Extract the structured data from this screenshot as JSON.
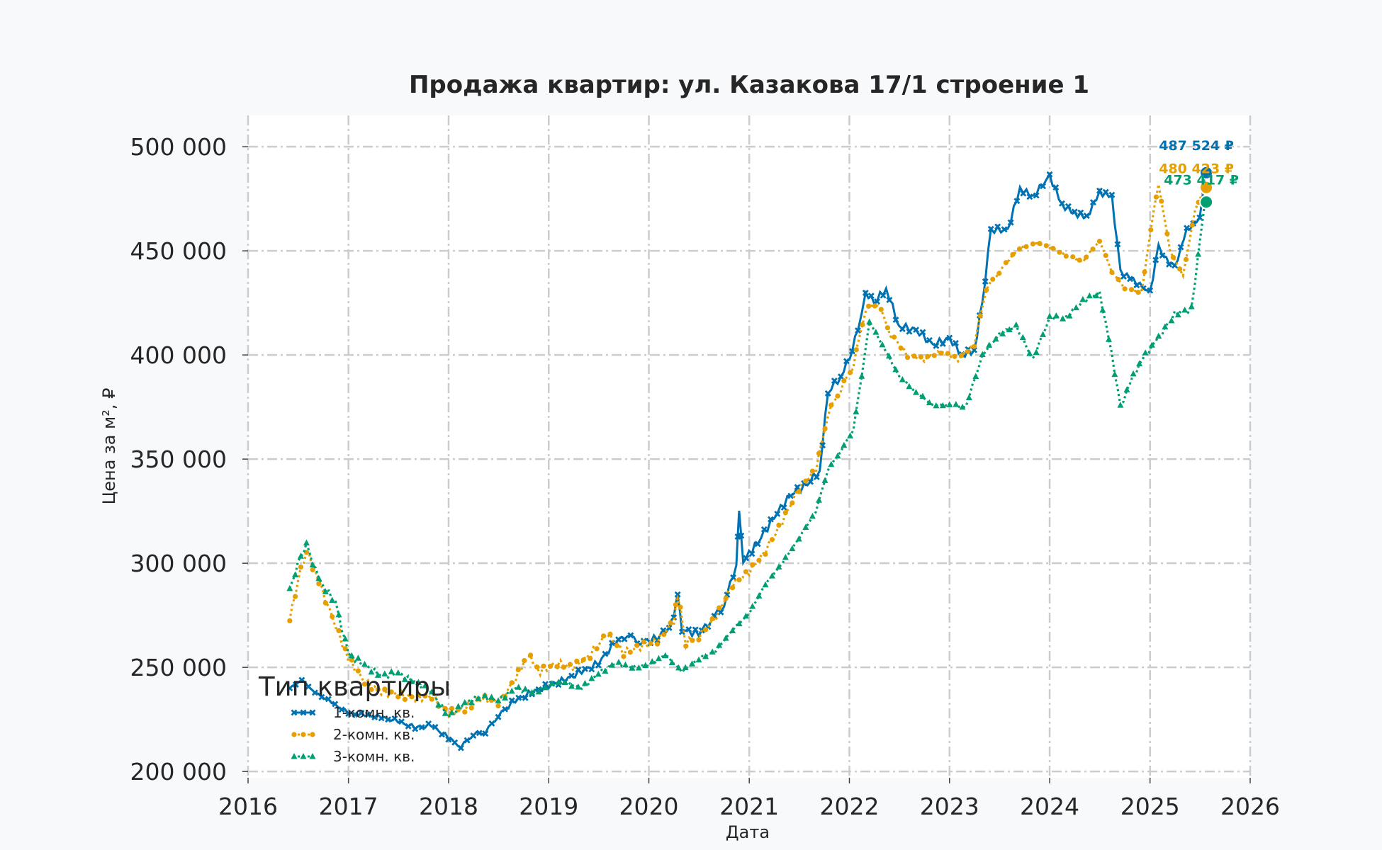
{
  "chart_data": {
    "type": "line",
    "title": "Продажа квартир: ул. Казакова 17/1 строение 1",
    "xlabel": "Дата",
    "ylabel": "Цена за м², ₽",
    "xlim": [
      "2016-01-01",
      "2026-01-01"
    ],
    "ylim": [
      197000,
      515000
    ],
    "x_ticks": [
      "2016",
      "2017",
      "2018",
      "2019",
      "2020",
      "2021",
      "2022",
      "2023",
      "2024",
      "2025",
      "2026"
    ],
    "y_ticks": [
      {
        "value": 200000,
        "label": "200 000"
      },
      {
        "value": 250000,
        "label": "250 000"
      },
      {
        "value": 300000,
        "label": "300 000"
      },
      {
        "value": 350000,
        "label": "350 000"
      },
      {
        "value": 400000,
        "label": "400 000"
      },
      {
        "value": 450000,
        "label": "450 000"
      },
      {
        "value": 500000,
        "label": "500 000"
      }
    ],
    "grid": true,
    "legend": {
      "title": "Тип квартиры",
      "placement": "lower-left"
    },
    "series": [
      {
        "name": "1-комн. кв.",
        "color": "#0072b2",
        "marker": "x",
        "end_label": "487 524 ₽",
        "end_value": 487524,
        "points": [
          [
            "2016-06-01",
            240000
          ],
          [
            "2016-07-15",
            244000
          ],
          [
            "2016-09-01",
            238000
          ],
          [
            "2016-11-01",
            233000
          ],
          [
            "2017-01-01",
            228000
          ],
          [
            "2017-03-01",
            227000
          ],
          [
            "2017-05-01",
            226000
          ],
          [
            "2017-07-01",
            224000
          ],
          [
            "2017-09-01",
            221000
          ],
          [
            "2017-11-01",
            222000
          ],
          [
            "2018-01-01",
            216000
          ],
          [
            "2018-02-15",
            212000
          ],
          [
            "2018-04-01",
            218000
          ],
          [
            "2018-05-15",
            219000
          ],
          [
            "2018-07-01",
            227000
          ],
          [
            "2018-09-01",
            234000
          ],
          [
            "2018-11-01",
            238000
          ],
          [
            "2019-01-01",
            241000
          ],
          [
            "2019-03-01",
            244000
          ],
          [
            "2019-05-01",
            248000
          ],
          [
            "2019-07-01",
            252000
          ],
          [
            "2019-09-01",
            262000
          ],
          [
            "2019-10-15",
            266000
          ],
          [
            "2019-12-01",
            262000
          ],
          [
            "2020-02-01",
            264000
          ],
          [
            "2020-03-15",
            270000
          ],
          [
            "2020-04-01",
            275000
          ],
          [
            "2020-04-15",
            286000
          ],
          [
            "2020-05-01",
            268000
          ],
          [
            "2020-07-01",
            266000
          ],
          [
            "2020-08-15",
            273000
          ],
          [
            "2020-10-01",
            280000
          ],
          [
            "2020-11-15",
            300000
          ],
          [
            "2020-11-25",
            326000
          ],
          [
            "2020-12-10",
            301000
          ],
          [
            "2021-02-01",
            310000
          ],
          [
            "2021-04-01",
            322000
          ],
          [
            "2021-06-01",
            333000
          ],
          [
            "2021-08-01",
            338000
          ],
          [
            "2021-09-15",
            345000
          ],
          [
            "2021-10-15",
            382000
          ],
          [
            "2021-12-01",
            390000
          ],
          [
            "2022-01-01",
            398000
          ],
          [
            "2022-02-01",
            412000
          ],
          [
            "2022-03-01",
            430000
          ],
          [
            "2022-04-01",
            425000
          ],
          [
            "2022-05-15",
            432000
          ],
          [
            "2022-07-01",
            414000
          ],
          [
            "2022-09-01",
            412000
          ],
          [
            "2022-11-01",
            405000
          ],
          [
            "2023-01-01",
            408000
          ],
          [
            "2023-02-15",
            400000
          ],
          [
            "2023-04-01",
            402000
          ],
          [
            "2023-05-01",
            425000
          ],
          [
            "2023-06-01",
            460000
          ],
          [
            "2023-08-01",
            460000
          ],
          [
            "2023-09-15",
            480000
          ],
          [
            "2023-11-01",
            476000
          ],
          [
            "2024-01-01",
            486000
          ],
          [
            "2024-02-15",
            472000
          ],
          [
            "2024-04-01",
            468000
          ],
          [
            "2024-05-15",
            466000
          ],
          [
            "2024-07-01",
            478000
          ],
          [
            "2024-08-15",
            476000
          ],
          [
            "2024-09-15",
            440000
          ],
          [
            "2024-11-01",
            436000
          ],
          [
            "2025-01-01",
            430000
          ],
          [
            "2025-02-01",
            452000
          ],
          [
            "2025-03-01",
            446000
          ],
          [
            "2025-04-01",
            442000
          ],
          [
            "2025-05-15",
            460000
          ],
          [
            "2025-07-01",
            465000
          ],
          [
            "2025-07-20",
            487524
          ]
        ]
      },
      {
        "name": "2-комн. кв.",
        "color": "#e69f00",
        "marker": "o",
        "end_label": "480 423 ₽",
        "end_value": 480423,
        "points": [
          [
            "2016-06-01",
            273000
          ],
          [
            "2016-07-01",
            292000
          ],
          [
            "2016-08-01",
            306000
          ],
          [
            "2016-09-15",
            291000
          ],
          [
            "2016-11-15",
            270000
          ],
          [
            "2017-01-01",
            254000
          ],
          [
            "2017-03-01",
            243000
          ],
          [
            "2017-05-01",
            238000
          ],
          [
            "2017-07-01",
            237000
          ],
          [
            "2017-09-01",
            235000
          ],
          [
            "2017-11-01",
            236000
          ],
          [
            "2018-01-01",
            228000
          ],
          [
            "2018-03-01",
            230000
          ],
          [
            "2018-05-01",
            235000
          ],
          [
            "2018-07-01",
            233000
          ],
          [
            "2018-09-01",
            244000
          ],
          [
            "2018-10-15",
            256000
          ],
          [
            "2018-12-01",
            248000
          ],
          [
            "2019-02-01",
            252000
          ],
          [
            "2019-04-01",
            250000
          ],
          [
            "2019-06-01",
            256000
          ],
          [
            "2019-08-01",
            266000
          ],
          [
            "2019-10-01",
            257000
          ],
          [
            "2019-12-01",
            260000
          ],
          [
            "2020-02-01",
            263000
          ],
          [
            "2020-04-01",
            272000
          ],
          [
            "2020-04-15",
            285000
          ],
          [
            "2020-05-15",
            262000
          ],
          [
            "2020-07-01",
            265000
          ],
          [
            "2020-09-01",
            274000
          ],
          [
            "2020-11-01",
            290000
          ],
          [
            "2021-01-01",
            296000
          ],
          [
            "2021-03-01",
            306000
          ],
          [
            "2021-05-01",
            320000
          ],
          [
            "2021-07-01",
            336000
          ],
          [
            "2021-09-01",
            345000
          ],
          [
            "2021-10-15",
            372000
          ],
          [
            "2021-12-01",
            384000
          ],
          [
            "2022-01-15",
            395000
          ],
          [
            "2022-03-01",
            422000
          ],
          [
            "2022-04-15",
            425000
          ],
          [
            "2022-06-01",
            410000
          ],
          [
            "2022-08-01",
            400000
          ],
          [
            "2022-10-01",
            398000
          ],
          [
            "2022-12-01",
            402000
          ],
          [
            "2023-02-01",
            398000
          ],
          [
            "2023-04-01",
            405000
          ],
          [
            "2023-05-15",
            432000
          ],
          [
            "2023-07-01",
            440000
          ],
          [
            "2023-09-01",
            450000
          ],
          [
            "2023-11-01",
            454000
          ],
          [
            "2024-01-01",
            452000
          ],
          [
            "2024-03-01",
            448000
          ],
          [
            "2024-05-01",
            445000
          ],
          [
            "2024-07-01",
            455000
          ],
          [
            "2024-08-15",
            440000
          ],
          [
            "2024-10-01",
            432000
          ],
          [
            "2024-12-01",
            430000
          ],
          [
            "2025-01-15",
            470000
          ],
          [
            "2025-02-01",
            482000
          ],
          [
            "2025-03-15",
            450000
          ],
          [
            "2025-05-01",
            438000
          ],
          [
            "2025-06-15",
            470000
          ],
          [
            "2025-07-20",
            480423
          ]
        ]
      },
      {
        "name": "3-комн. кв.",
        "color": "#009e73",
        "marker": "^",
        "end_label": "473 417 ₽",
        "end_value": 473417,
        "points": [
          [
            "2016-06-01",
            287000
          ],
          [
            "2016-07-01",
            300000
          ],
          [
            "2016-08-01",
            309000
          ],
          [
            "2016-09-15",
            292000
          ],
          [
            "2016-11-15",
            281000
          ],
          [
            "2017-01-01",
            256000
          ],
          [
            "2017-03-01",
            251000
          ],
          [
            "2017-05-01",
            246000
          ],
          [
            "2017-07-01",
            247000
          ],
          [
            "2017-09-01",
            243000
          ],
          [
            "2017-11-01",
            238000
          ],
          [
            "2018-01-01",
            226000
          ],
          [
            "2018-03-01",
            233000
          ],
          [
            "2018-05-01",
            236000
          ],
          [
            "2018-07-01",
            234000
          ],
          [
            "2018-09-01",
            240000
          ],
          [
            "2018-11-01",
            238000
          ],
          [
            "2019-01-01",
            241000
          ],
          [
            "2019-03-01",
            243000
          ],
          [
            "2019-05-01",
            240000
          ],
          [
            "2019-07-01",
            247000
          ],
          [
            "2019-09-01",
            252000
          ],
          [
            "2019-11-01",
            250000
          ],
          [
            "2020-01-01",
            251000
          ],
          [
            "2020-03-01",
            256000
          ],
          [
            "2020-05-01",
            248000
          ],
          [
            "2020-07-01",
            254000
          ],
          [
            "2020-09-01",
            258000
          ],
          [
            "2020-11-01",
            268000
          ],
          [
            "2021-01-01",
            276000
          ],
          [
            "2021-03-01",
            290000
          ],
          [
            "2021-05-01",
            300000
          ],
          [
            "2021-07-01",
            312000
          ],
          [
            "2021-09-01",
            325000
          ],
          [
            "2021-10-15",
            345000
          ],
          [
            "2021-12-01",
            354000
          ],
          [
            "2022-01-15",
            364000
          ],
          [
            "2022-02-15",
            390000
          ],
          [
            "2022-03-15",
            416000
          ],
          [
            "2022-05-01",
            405000
          ],
          [
            "2022-07-01",
            390000
          ],
          [
            "2022-09-01",
            382000
          ],
          [
            "2022-11-01",
            376000
          ],
          [
            "2023-01-01",
            376000
          ],
          [
            "2023-03-01",
            375000
          ],
          [
            "2023-05-01",
            400000
          ],
          [
            "2023-07-01",
            410000
          ],
          [
            "2023-09-01",
            414000
          ],
          [
            "2023-11-01",
            398000
          ],
          [
            "2024-01-01",
            418000
          ],
          [
            "2024-03-01",
            418000
          ],
          [
            "2024-05-01",
            426000
          ],
          [
            "2024-07-01",
            430000
          ],
          [
            "2024-08-15",
            400000
          ],
          [
            "2024-09-15",
            375000
          ],
          [
            "2024-11-01",
            390000
          ],
          [
            "2024-12-15",
            400000
          ],
          [
            "2025-02-01",
            408000
          ],
          [
            "2025-04-01",
            420000
          ],
          [
            "2025-06-01",
            422000
          ],
          [
            "2025-07-20",
            473417
          ]
        ]
      }
    ]
  }
}
